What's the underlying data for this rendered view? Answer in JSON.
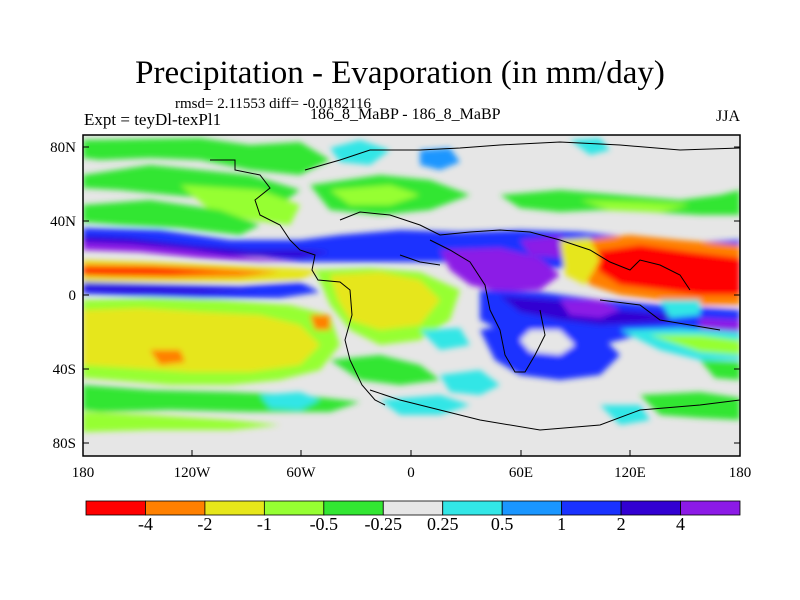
{
  "title": "Precipitation - Evaporation (in mm/day)",
  "stats": "rmsd= 2.11553 diff= -0.0182116",
  "expt": "Expt = teyDl-texPl1",
  "cases": "186_8_MaBP - 186_8_MaBP",
  "season": "JJA",
  "lat_labels": [
    "80N",
    "40N",
    "0",
    "40S",
    "80S"
  ],
  "lon_labels": [
    "180",
    "120W",
    "60W",
    "0",
    "60E",
    "120E",
    "180"
  ],
  "colorbar": {
    "labels": [
      "-4",
      "-2",
      "-1",
      "-0.5",
      "-0.25",
      "0.25",
      "0.5",
      "1",
      "2",
      "4"
    ],
    "colors": [
      "#ff0000",
      "#ff8000",
      "#e6e61a",
      "#96ff32",
      "#32e632",
      "#e6e6e6",
      "#32e6e6",
      "#1a96ff",
      "#1a32ff",
      "#3200d2",
      "#8c1ae6"
    ]
  }
}
